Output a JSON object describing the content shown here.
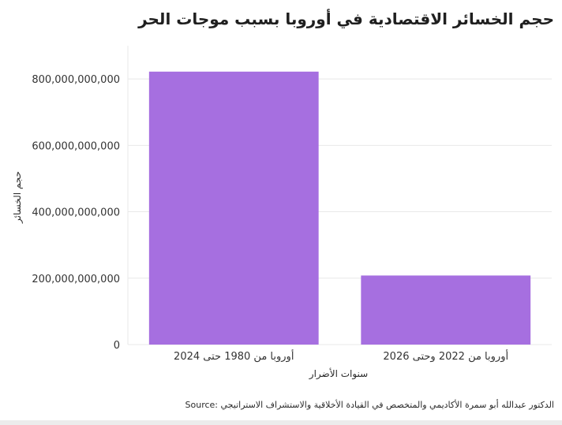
{
  "header": {
    "title": "حجم الخسائر الاقتصادية في أوروبا بسبب موجات الحر"
  },
  "footer": {
    "source": "Source: الدكتور عبدالله أبو سمرة الأكاديمي والمتخصص في القيادة الأخلاقية والاستشراف الاستراتيجي"
  },
  "colors": {
    "bar": "#a66fe0",
    "grid": "#e8e8e8"
  },
  "chart_data": {
    "type": "bar",
    "title": "حجم الخسائر الاقتصادية في أوروبا بسبب موجات الحر",
    "xlabel": "سنوات الأضرار",
    "ylabel": "حجم الخسائر",
    "categories": [
      "أوروبا من 1980 حتى 2024",
      "أوروبا من 2022 وحتى 2026"
    ],
    "values": [
      822000000000,
      208000000000
    ],
    "ylim": [
      0,
      900000000000
    ],
    "yticks": [
      0,
      200000000000,
      400000000000,
      600000000000,
      800000000000
    ],
    "ytick_labels": [
      "0",
      "200,000,000,000",
      "400,000,000,000",
      "600,000,000,000",
      "800,000,000,000"
    ],
    "grid": true,
    "legend": "none"
  }
}
